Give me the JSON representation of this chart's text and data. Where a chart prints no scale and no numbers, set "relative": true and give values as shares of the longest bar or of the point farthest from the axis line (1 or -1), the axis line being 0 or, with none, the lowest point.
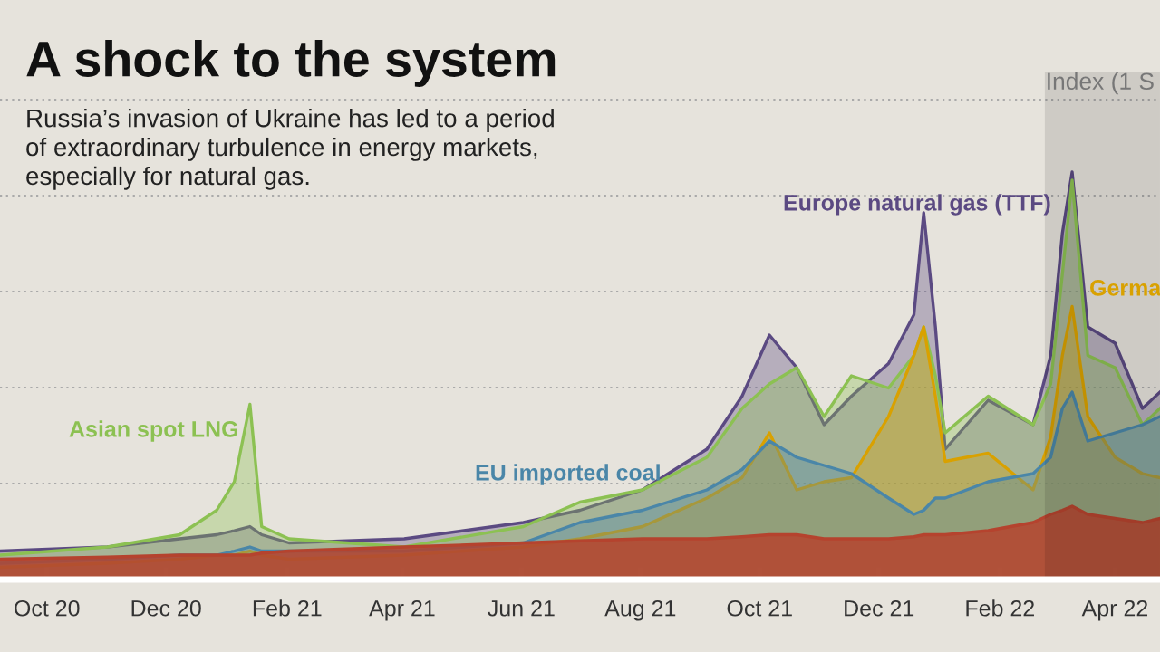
{
  "chart_data": {
    "type": "area",
    "title": "A shock to the system",
    "subtitle": "Russia’s invasion of Ukraine has led to a period\nof extraordinary turbulence in energy markets,\nespecially for natural gas.",
    "ylabel": "Index (1 S",
    "relative": true,
    "grid": "y",
    "legend": false,
    "x": [
      "2020-09-07",
      "2020-11-01",
      "2020-12-08",
      "2020-12-27",
      "2021-01-05",
      "2021-01-13",
      "2021-01-19",
      "2021-02-02",
      "2021-04-02",
      "2021-06-02",
      "2021-07-01",
      "2021-08-02",
      "2021-09-04",
      "2021-09-22",
      "2021-10-06",
      "2021-10-20",
      "2021-11-03",
      "2021-11-17",
      "2021-12-06",
      "2021-12-19",
      "2021-12-24",
      "2021-12-30",
      "2022-01-04",
      "2022-01-26",
      "2022-02-18",
      "2022-02-27",
      "2022-03-05",
      "2022-03-10",
      "2022-03-18",
      "2022-04-01",
      "2022-04-15",
      "2022-04-24"
    ],
    "xlim": [
      "2020-09-07",
      "2022-04-24"
    ],
    "xticks": [
      {
        "value": "2020-10-01",
        "label": "Oct 20"
      },
      {
        "value": "2020-12-01",
        "label": "Dec 20"
      },
      {
        "value": "2021-02-01",
        "label": "Feb 21"
      },
      {
        "value": "2021-04-01",
        "label": "Apr 21"
      },
      {
        "value": "2021-06-01",
        "label": "Jun 21"
      },
      {
        "value": "2021-08-01",
        "label": "Aug 21"
      },
      {
        "value": "2021-10-01",
        "label": "Oct 21"
      },
      {
        "value": "2021-12-01",
        "label": "Dec 21"
      },
      {
        "value": "2022-02-01",
        "label": "Feb 22"
      },
      {
        "value": "2022-04-01",
        "label": "Apr 22"
      }
    ],
    "bands": [
      {
        "axis": "x",
        "from": "2022-02-24",
        "to": "2022-04-24",
        "color": "#000000"
      }
    ],
    "series": [
      {
        "name": "Europe natural gas (TTF)",
        "color": "#5b4a82",
        "values": [
          0.07,
          0.08,
          0.1,
          0.11,
          0.12,
          0.13,
          0.11,
          0.09,
          0.1,
          0.14,
          0.17,
          0.22,
          0.32,
          0.45,
          0.6,
          0.52,
          0.38,
          0.45,
          0.53,
          0.65,
          0.9,
          0.62,
          0.32,
          0.44,
          0.38,
          0.55,
          0.85,
          1.0,
          0.62,
          0.58,
          0.42,
          0.46
        ]
      },
      {
        "name": "Asian spot LNG",
        "color": "#8cc152",
        "values": [
          0.06,
          0.08,
          0.11,
          0.17,
          0.24,
          0.43,
          0.13,
          0.1,
          0.08,
          0.13,
          0.19,
          0.22,
          0.3,
          0.42,
          0.48,
          0.52,
          0.4,
          0.5,
          0.47,
          0.55,
          0.62,
          0.5,
          0.36,
          0.45,
          0.38,
          0.48,
          0.75,
          0.98,
          0.55,
          0.52,
          0.38,
          0.42
        ]
      },
      {
        "name": "Germa",
        "color": "#d9a100",
        "values": [
          0.03,
          0.04,
          0.05,
          0.06,
          0.06,
          0.07,
          0.06,
          0.05,
          0.06,
          0.08,
          0.1,
          0.13,
          0.2,
          0.25,
          0.36,
          0.22,
          0.24,
          0.25,
          0.4,
          0.55,
          0.62,
          0.45,
          0.29,
          0.31,
          0.22,
          0.35,
          0.55,
          0.67,
          0.4,
          0.3,
          0.26,
          0.25
        ]
      },
      {
        "name": "EU imported coal",
        "color": "#4a86a8",
        "values": [
          0.04,
          0.05,
          0.06,
          0.06,
          0.07,
          0.08,
          0.07,
          0.07,
          0.07,
          0.09,
          0.14,
          0.17,
          0.22,
          0.27,
          0.34,
          0.3,
          0.28,
          0.26,
          0.2,
          0.16,
          0.17,
          0.2,
          0.2,
          0.24,
          0.26,
          0.3,
          0.42,
          0.46,
          0.34,
          0.36,
          0.38,
          0.4
        ]
      },
      {
        "color": "#b5432e",
        "values": [
          0.05,
          0.055,
          0.06,
          0.06,
          0.06,
          0.06,
          0.065,
          0.07,
          0.08,
          0.09,
          0.095,
          0.1,
          0.1,
          0.105,
          0.11,
          0.11,
          0.1,
          0.1,
          0.1,
          0.105,
          0.11,
          0.11,
          0.11,
          0.12,
          0.14,
          0.16,
          0.17,
          0.18,
          0.16,
          0.15,
          0.14,
          0.15
        ]
      }
    ]
  }
}
